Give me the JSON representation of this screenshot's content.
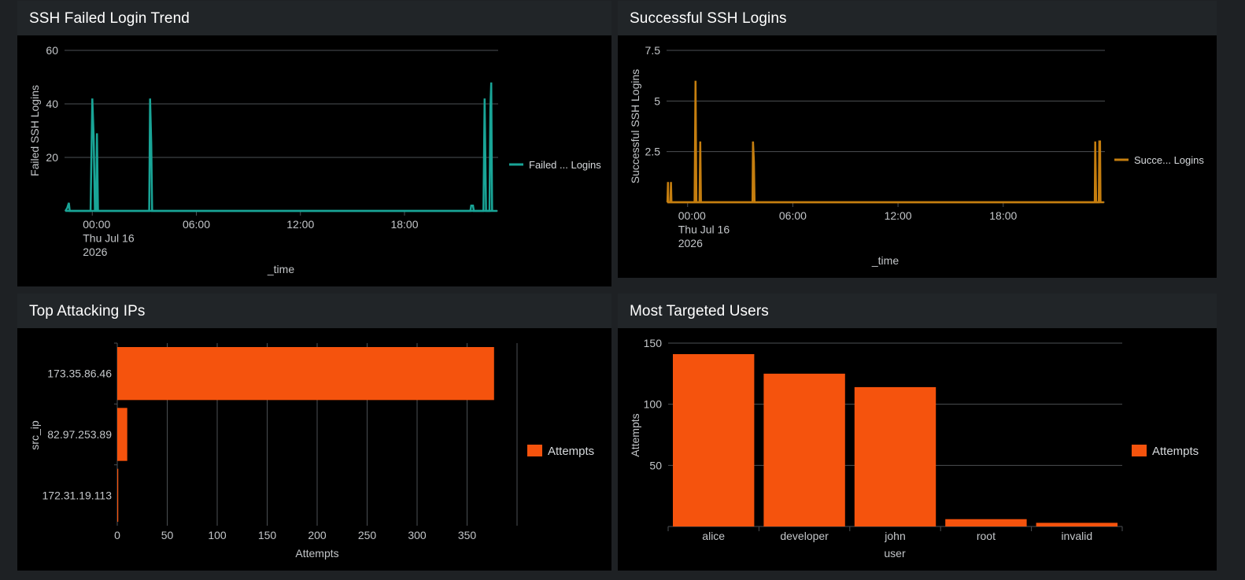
{
  "colors": {
    "page_bg": "#1e2124",
    "panel_bg": "#000000",
    "header_bg": "#212528",
    "teal": "#19a597",
    "amber": "#c57e0f",
    "orange": "#f5530d",
    "grid": "#4b4f53"
  },
  "panels": {
    "failed": {
      "title": "SSH Failed Login Trend",
      "legend": "Failed ... Logins",
      "ylabel": "Failed SSH Logins",
      "xlabel": "_time",
      "first_tick_lines": [
        "00:00",
        "Thu Jul 16",
        "2026"
      ]
    },
    "success": {
      "title": "Successful SSH Logins",
      "legend": "Succe... Logins",
      "ylabel": "Successful SSH Logins",
      "xlabel": "_time",
      "first_tick_lines": [
        "00:00",
        "Thu Jul 16",
        "2026"
      ]
    },
    "ips": {
      "title": "Top Attacking IPs",
      "legend": "Attempts",
      "ylabel": "src_ip",
      "xlabel": "Attempts"
    },
    "users": {
      "title": "Most Targeted Users",
      "legend": "Attempts",
      "ylabel": "Attempts",
      "xlabel": "user"
    }
  },
  "chart_data": [
    {
      "type": "line",
      "title": "SSH Failed Login Trend",
      "xlabel": "_time",
      "ylabel": "Failed SSH Logins",
      "x_unit": "hours relative to 00:00 Thu Jul 16 2026",
      "xlim": [
        -1.6,
        23.4
      ],
      "ylim": [
        0,
        60
      ],
      "yticks": [
        20,
        40,
        60
      ],
      "xticks": [
        0,
        6,
        12,
        18
      ],
      "xtick_labels": [
        "00:00",
        "06:00",
        "12:00",
        "18:00"
      ],
      "grid": true,
      "legend_position": "right",
      "series": [
        {
          "name": "Failed ... Logins",
          "color": "#19a597",
          "points": [
            [
              -1.55,
              0
            ],
            [
              -1.45,
              1
            ],
            [
              -1.35,
              3
            ],
            [
              -1.3,
              0
            ],
            [
              -0.1,
              0
            ],
            [
              0.0,
              42
            ],
            [
              0.08,
              28
            ],
            [
              0.15,
              0
            ],
            [
              0.22,
              0
            ],
            [
              0.27,
              29
            ],
            [
              0.33,
              0
            ],
            [
              3.28,
              0
            ],
            [
              3.33,
              42
            ],
            [
              3.4,
              25
            ],
            [
              3.45,
              0
            ],
            [
              21.8,
              0
            ],
            [
              21.85,
              2
            ],
            [
              21.95,
              2
            ],
            [
              22.0,
              0
            ],
            [
              22.55,
              0
            ],
            [
              22.62,
              42
            ],
            [
              22.7,
              0
            ],
            [
              22.9,
              0
            ],
            [
              22.95,
              38
            ],
            [
              23.0,
              48
            ],
            [
              23.05,
              0
            ]
          ]
        }
      ]
    },
    {
      "type": "line",
      "title": "Successful SSH Logins",
      "xlabel": "_time",
      "ylabel": "Successful SSH Logins",
      "x_unit": "hours relative to 00:00 Thu Jul 16 2026",
      "xlim": [
        -1.2,
        23.8
      ],
      "ylim": [
        0,
        7.5
      ],
      "yticks": [
        2.5,
        5,
        7.5
      ],
      "xticks": [
        0,
        6,
        12,
        18
      ],
      "xtick_labels": [
        "00:00",
        "06:00",
        "12:00",
        "18:00"
      ],
      "grid": true,
      "legend_position": "right",
      "series": [
        {
          "name": "Succe... Logins",
          "color": "#c57e0f",
          "points": [
            [
              -1.15,
              0
            ],
            [
              -1.12,
              1
            ],
            [
              -1.1,
              0
            ],
            [
              -0.98,
              0
            ],
            [
              -0.95,
              1
            ],
            [
              -0.92,
              0
            ],
            [
              0.4,
              0
            ],
            [
              0.45,
              6
            ],
            [
              0.5,
              0
            ],
            [
              0.68,
              0
            ],
            [
              0.72,
              3
            ],
            [
              0.76,
              0
            ],
            [
              3.7,
              0
            ],
            [
              3.73,
              3
            ],
            [
              3.78,
              2
            ],
            [
              3.82,
              0
            ],
            [
              23.22,
              0
            ],
            [
              23.25,
              3
            ],
            [
              23.3,
              0
            ],
            [
              23.45,
              0
            ],
            [
              23.48,
              3
            ],
            [
              23.52,
              3
            ],
            [
              23.55,
              0
            ]
          ]
        }
      ]
    },
    {
      "type": "bar",
      "orientation": "horizontal",
      "title": "Top Attacking IPs",
      "xlabel": "Attempts",
      "ylabel": "src_ip",
      "categories": [
        "173.35.86.46",
        "82.97.253.89",
        "172.31.19.113"
      ],
      "series": [
        {
          "name": "Attempts",
          "values": [
            377,
            10,
            1
          ]
        }
      ],
      "xlim": [
        0,
        400
      ],
      "xticks": [
        0,
        50,
        100,
        150,
        200,
        250,
        300,
        350
      ],
      "grid": true,
      "legend_position": "right"
    },
    {
      "type": "bar",
      "title": "Most Targeted Users",
      "xlabel": "user",
      "ylabel": "Attempts",
      "categories": [
        "alice",
        "developer",
        "john",
        "root",
        "invalid"
      ],
      "series": [
        {
          "name": "Attempts",
          "values": [
            141,
            125,
            114,
            6,
            3
          ]
        }
      ],
      "ylim": [
        0,
        150
      ],
      "yticks": [
        50,
        100,
        150
      ],
      "grid": true,
      "legend_position": "right"
    }
  ]
}
